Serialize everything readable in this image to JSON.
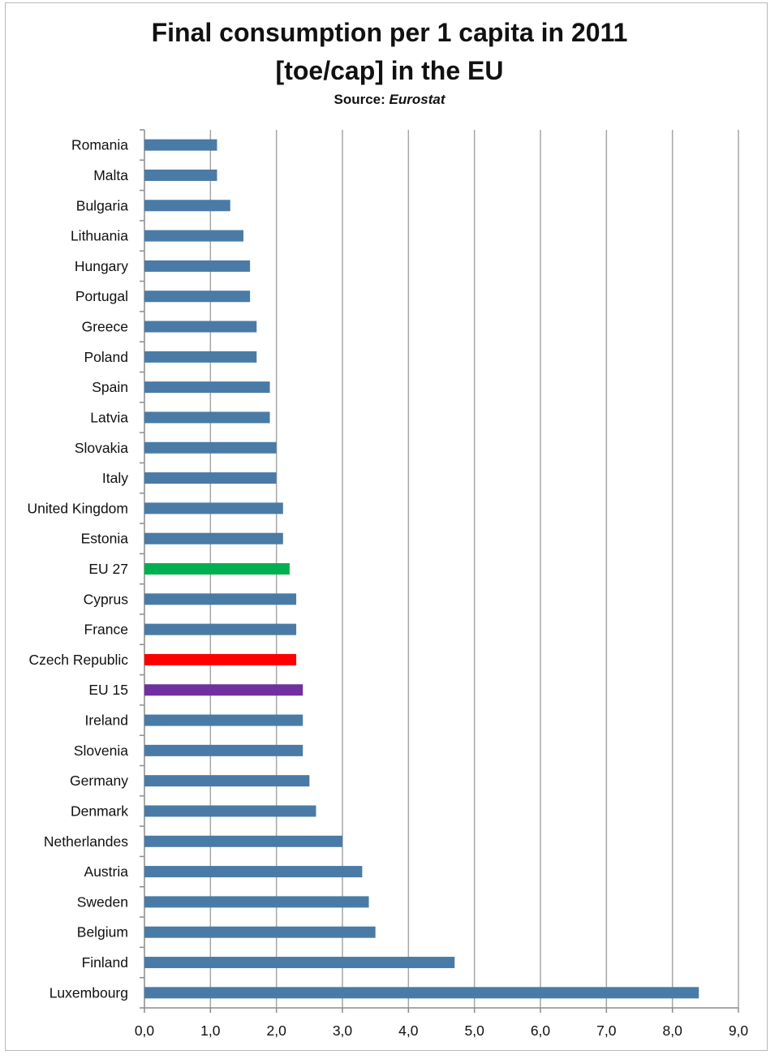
{
  "chart_data": {
    "type": "bar",
    "orientation": "horizontal",
    "title_lines": [
      "Final consumption per 1 capita in 2011",
      "[toe/cap] in the EU"
    ],
    "source_label": "Source:",
    "source_name": "Eurostat",
    "categories": [
      "Romania",
      "Malta",
      "Bulgaria",
      "Lithuania",
      "Hungary",
      "Portugal",
      "Greece",
      "Poland",
      "Spain",
      "Latvia",
      "Slovakia",
      "Italy",
      "United Kingdom",
      "Estonia",
      "EU 27",
      "Cyprus",
      "France",
      "Czech Republic",
      "EU 15",
      "Ireland",
      "Slovenia",
      "Germany",
      "Denmark",
      "Netherlandes",
      "Austria",
      "Sweden",
      "Belgium",
      "Finland",
      "Luxembourg"
    ],
    "values": [
      1.1,
      1.1,
      1.3,
      1.5,
      1.6,
      1.6,
      1.7,
      1.7,
      1.9,
      1.9,
      2.0,
      2.0,
      2.1,
      2.1,
      2.2,
      2.3,
      2.3,
      2.3,
      2.4,
      2.4,
      2.4,
      2.5,
      2.6,
      3.0,
      3.3,
      3.4,
      3.5,
      4.7,
      8.4
    ],
    "xlim": [
      0,
      9
    ],
    "xticks": [
      0,
      1,
      2,
      3,
      4,
      5,
      6,
      7,
      8,
      9
    ],
    "xtick_labels": [
      "0,0",
      "1,0",
      "2,0",
      "3,0",
      "4,0",
      "5,0",
      "6,0",
      "7,0",
      "8,0",
      "9,0"
    ],
    "grid": "vertical",
    "legend": "none",
    "colors": {
      "default": "#4a7ba6",
      "EU 27": "#00b050",
      "Czech Republic": "#ff0000",
      "EU 15": "#7030a0",
      "gridline": "#a6a6a6",
      "axis": "#8c8c8c"
    }
  }
}
